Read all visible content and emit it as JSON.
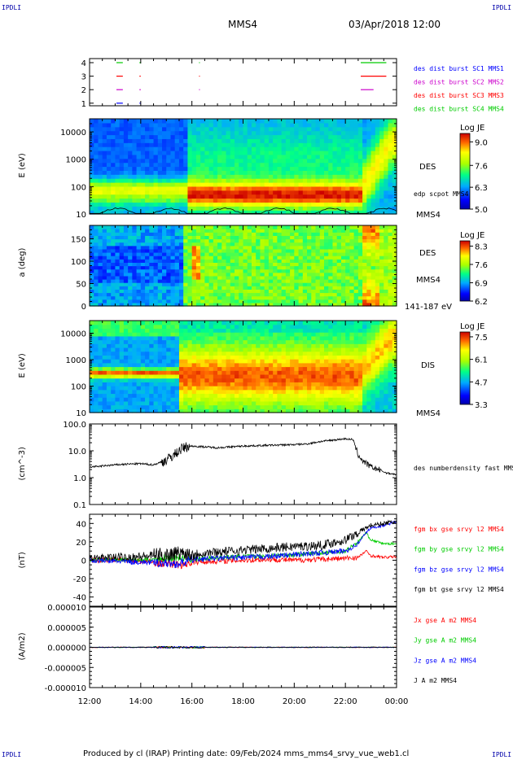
{
  "header": {
    "corner_left_top": "IPDLI",
    "corner_right_top": "IPDLI",
    "corner_left_bottom": "IPDLI",
    "corner_right_bottom": "IPDLI",
    "spacecraft": "MMS4",
    "datetime": "03/Apr/2018 12:00"
  },
  "footer": {
    "text": "Produced by cl (IRAP)   Printing date: 09/Feb/2024   mms_mms4_srvy_vue_web1.cl"
  },
  "colors": {
    "blue": "#0000ff",
    "magenta": "#cc00cc",
    "red": "#ff0000",
    "green": "#00cc00",
    "black": "#000000"
  },
  "time_axis": {
    "tick_labels": [
      "12:00",
      "14:00",
      "16:00",
      "18:00",
      "20:00",
      "22:00",
      "00:00"
    ],
    "start_hour": 12,
    "end_hour": 24
  },
  "chart_data": [
    {
      "type": "scatter",
      "panel": "availability",
      "yticks": [
        "4",
        "3",
        "2",
        "1"
      ],
      "legend": [
        {
          "name": "des dist burst SC1 MMS1",
          "color": "#0000ff"
        },
        {
          "name": "des dist burst SC2 MMS2",
          "color": "#cc00cc"
        },
        {
          "name": "des dist burst SC3 MMS3",
          "color": "#ff0000"
        },
        {
          "name": "des dist burst SC4 MMS4",
          "color": "#00cc00"
        }
      ],
      "series": [
        {
          "sc": 4,
          "color": "#00cc00",
          "intervals": [
            [
              13.05,
              13.3
            ],
            [
              13.95,
              14.0
            ],
            [
              16.28,
              16.3
            ],
            [
              22.6,
              23.6
            ]
          ]
        },
        {
          "sc": 3,
          "color": "#ff0000",
          "intervals": [
            [
              13.05,
              13.3
            ],
            [
              13.95,
              14.0
            ],
            [
              16.28,
              16.3
            ],
            [
              22.6,
              23.6
            ]
          ]
        },
        {
          "sc": 2,
          "color": "#cc00cc",
          "intervals": [
            [
              13.05,
              13.3
            ],
            [
              13.95,
              14.0
            ],
            [
              16.28,
              16.3
            ],
            [
              22.6,
              23.1
            ]
          ]
        },
        {
          "sc": 1,
          "color": "#0000ff",
          "intervals": [
            [
              13.05,
              13.3
            ],
            [
              13.95,
              14.0
            ]
          ]
        }
      ]
    },
    {
      "type": "heatmap",
      "panel": "des-energy",
      "ylabel": "E (eV)",
      "yscale": "log",
      "ylim": [
        10,
        30000
      ],
      "yticks": [
        "10000",
        "1000",
        "100",
        "10"
      ],
      "right_labels": [
        "DES",
        "edp scpot MMS4",
        "MMS4"
      ],
      "colorbar": {
        "title": "Log JE",
        "ticks": [
          "9.0",
          "7.6",
          "6.3",
          "5.0"
        ],
        "range": [
          5.0,
          9.5
        ]
      }
    },
    {
      "type": "heatmap",
      "panel": "des-pitch",
      "ylabel": "a (deg)",
      "ylim": [
        0,
        180
      ],
      "yticks": [
        "150",
        "100",
        "50",
        "0"
      ],
      "right_labels": [
        "DES",
        "MMS4",
        "141-187 eV"
      ],
      "colorbar": {
        "title": "Log JE",
        "ticks": [
          "8.3",
          "7.6",
          "6.9",
          "6.2"
        ],
        "range": [
          6.2,
          8.5
        ]
      }
    },
    {
      "type": "heatmap",
      "panel": "dis-energy",
      "ylabel": "E (eV)",
      "yscale": "log",
      "ylim": [
        10,
        30000
      ],
      "yticks": [
        "10000",
        "1000",
        "100",
        "10"
      ],
      "right_labels": [
        "DIS",
        "MMS4"
      ],
      "colorbar": {
        "title": "Log JE",
        "ticks": [
          "7.5",
          "6.1",
          "4.7",
          "3.3"
        ],
        "range": [
          3.3,
          7.8
        ]
      }
    },
    {
      "type": "line",
      "panel": "density",
      "ylabel": "(cm^-3)",
      "yscale": "log",
      "ylim": [
        0.1,
        100
      ],
      "yticks": [
        "100.0",
        "10.0",
        "1.0",
        "0.1"
      ],
      "series": [
        {
          "name": "des numberdensity fast MMS4",
          "color": "#000000",
          "x": [
            12.0,
            12.5,
            13.0,
            13.5,
            14.0,
            14.5,
            15.0,
            15.3,
            15.6,
            15.8,
            16.0,
            16.5,
            17.0,
            18.0,
            19.0,
            20.0,
            20.5,
            21.0,
            21.5,
            22.0,
            22.3,
            22.5,
            22.7,
            23.0,
            23.3,
            23.6,
            24.0
          ],
          "y": [
            2.5,
            2.7,
            3.0,
            3.2,
            3.3,
            3.0,
            4.5,
            7.0,
            12,
            14,
            15,
            14,
            13,
            15,
            16,
            17,
            18,
            22,
            25,
            28,
            26,
            7,
            4,
            2.5,
            2.0,
            1.5,
            1.3
          ]
        }
      ]
    },
    {
      "type": "line",
      "panel": "magnetic-field",
      "ylabel": "(nT)",
      "ylim": [
        -50,
        50
      ],
      "yticks": [
        "40",
        "20",
        "0",
        "-20",
        "-40"
      ],
      "series": [
        {
          "name": "fgm bx gse srvy l2 MMS4",
          "color": "#ff0000",
          "x": [
            12.0,
            13.0,
            14.0,
            15.0,
            15.5,
            16.0,
            17.0,
            18.0,
            19.0,
            20.0,
            21.0,
            22.0,
            22.5,
            22.8,
            23.0,
            23.5,
            24.0
          ],
          "y": [
            0,
            1,
            -1,
            -3,
            -5,
            -2,
            -1,
            0,
            1,
            0,
            1,
            2,
            3,
            10,
            5,
            3,
            4
          ]
        },
        {
          "name": "fgm by gse srvy l2 MMS4",
          "color": "#00cc00",
          "x": [
            12.0,
            13.0,
            14.0,
            15.0,
            15.5,
            16.0,
            17.0,
            18.0,
            19.0,
            20.0,
            21.0,
            22.0,
            22.5,
            22.8,
            23.0,
            23.5,
            24.0
          ],
          "y": [
            0,
            1,
            0,
            2,
            3,
            1,
            3,
            4,
            5,
            6,
            8,
            10,
            20,
            30,
            22,
            18,
            18
          ]
        },
        {
          "name": "fgm bz gse srvy l2 MMS4",
          "color": "#0000ff",
          "x": [
            12.0,
            13.0,
            14.0,
            15.0,
            15.5,
            16.0,
            17.0,
            18.0,
            19.0,
            20.0,
            21.0,
            22.0,
            22.5,
            22.8,
            23.0,
            23.5,
            24.0
          ],
          "y": [
            0,
            -1,
            -2,
            -3,
            -4,
            1,
            2,
            3,
            4,
            6,
            8,
            10,
            18,
            30,
            35,
            38,
            42
          ]
        },
        {
          "name": "fgm bt gse srvy l2 MMS4",
          "color": "#000000",
          "x": [
            12.0,
            13.0,
            14.0,
            15.0,
            15.5,
            16.0,
            17.0,
            18.0,
            19.0,
            20.0,
            21.0,
            22.0,
            22.5,
            22.8,
            23.0,
            23.5,
            24.0
          ],
          "y": [
            1,
            3,
            4,
            6,
            8,
            7,
            9,
            11,
            13,
            15,
            16,
            22,
            30,
            35,
            38,
            40,
            42
          ]
        }
      ]
    },
    {
      "type": "line",
      "panel": "current-density",
      "ylabel": "(A/m2)",
      "ylim": [
        -0.0001,
        0.0001
      ],
      "yticks": [
        "0.000010",
        "0.000005",
        "0.000000",
        "-0.000005",
        "-0.000010"
      ],
      "series": [
        {
          "name": "Jx gse A m2 MMS4",
          "color": "#ff0000",
          "x": [
            12,
            24
          ],
          "y": [
            0,
            0
          ]
        },
        {
          "name": "Jy gse A m2 MMS4",
          "color": "#00cc00",
          "x": [
            12,
            24
          ],
          "y": [
            0,
            0
          ]
        },
        {
          "name": "Jz gse A m2 MMS4",
          "color": "#0000ff",
          "x": [
            12,
            24
          ],
          "y": [
            0,
            0
          ]
        },
        {
          "name": "J A m2 MMS4",
          "color": "#000000",
          "x": [
            12,
            24
          ],
          "y": [
            0,
            0
          ]
        }
      ]
    }
  ]
}
